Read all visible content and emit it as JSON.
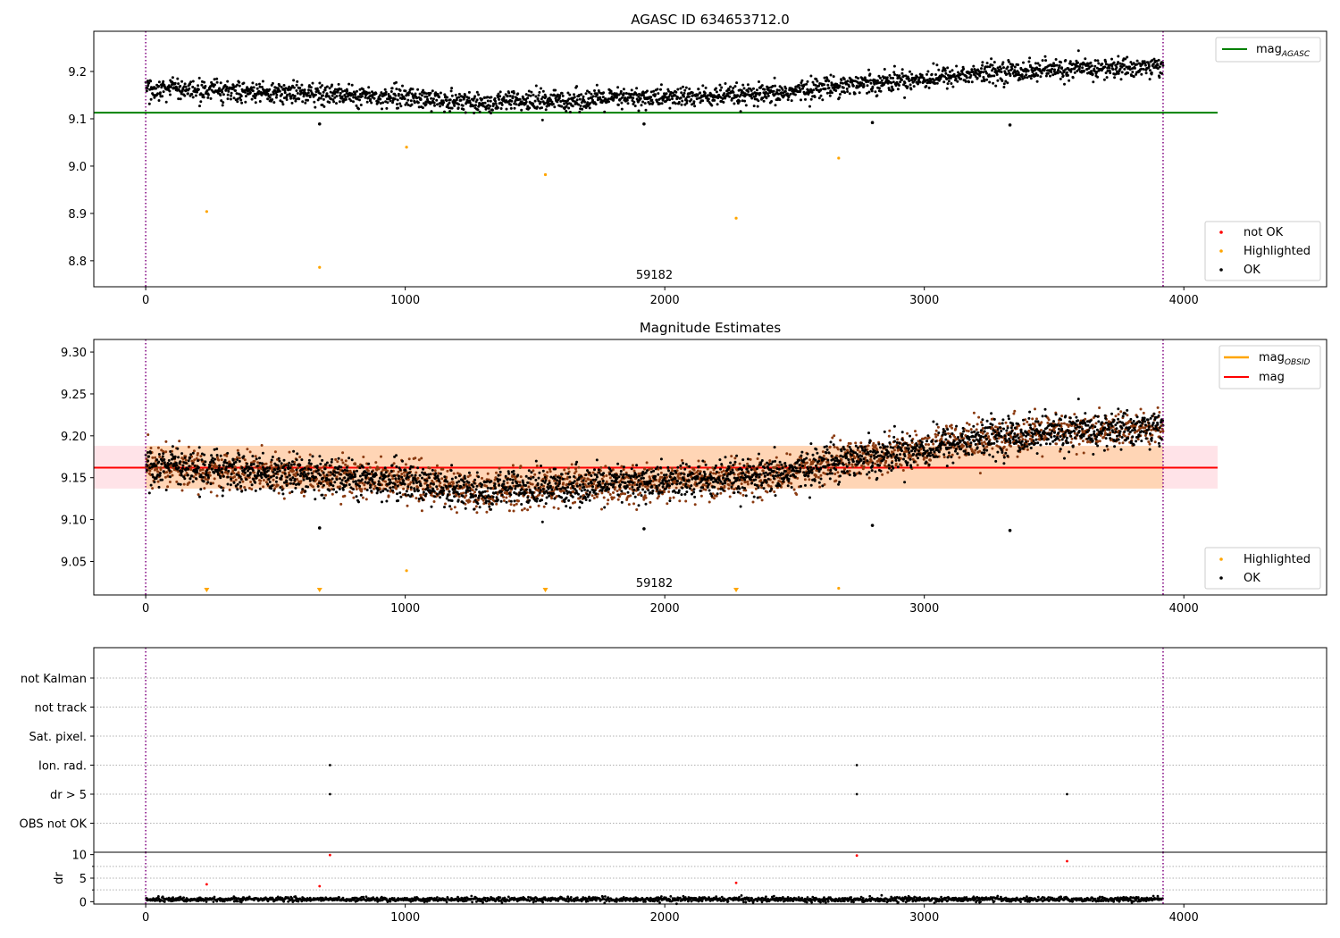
{
  "chart_data": [
    {
      "type": "scatter",
      "title": "AGASC ID 634653712.0",
      "xlim": [
        -200,
        4550
      ],
      "ylim": [
        8.745,
        9.285
      ],
      "x_ticks": [
        0,
        1000,
        2000,
        3000,
        4000
      ],
      "y_ticks": [
        8.8,
        8.9,
        9.0,
        9.1,
        9.2
      ],
      "grid": false,
      "legend_placement": [
        "top-right",
        "bottom-right"
      ],
      "mag_line": {
        "name": "mag_AGASC",
        "value": 9.113,
        "x_range": [
          -200,
          4130
        ],
        "color": "#008000"
      },
      "obsid_boundaries": [
        0,
        3920
      ],
      "obsid_label": {
        "text": "59182",
        "x": 1960
      },
      "ok_trend": [
        [
          0,
          9.163
        ],
        [
          300,
          9.158
        ],
        [
          700,
          9.152
        ],
        [
          1000,
          9.146
        ],
        [
          1300,
          9.133
        ],
        [
          1650,
          9.14
        ],
        [
          2000,
          9.145
        ],
        [
          2400,
          9.15
        ],
        [
          2650,
          9.17
        ],
        [
          3000,
          9.185
        ],
        [
          3300,
          9.2
        ],
        [
          3920,
          9.21
        ]
      ],
      "ok_outliers": [
        [
          670,
          9.089
        ],
        [
          1920,
          9.089
        ],
        [
          2800,
          9.092
        ],
        [
          3330,
          9.087
        ]
      ],
      "highlighted_points": [
        [
          235,
          8.904
        ],
        [
          670,
          8.786
        ],
        [
          1005,
          9.04
        ],
        [
          1540,
          8.982
        ],
        [
          2275,
          8.89
        ],
        [
          2670,
          9.017
        ]
      ],
      "legend_top": [
        {
          "label_main": "mag",
          "label_sub": "AGASC",
          "color": "#008000"
        }
      ],
      "legend_bottom": [
        {
          "label": "not OK",
          "color": "#ff0000"
        },
        {
          "label": "Highlighted",
          "color": "#ffa500"
        },
        {
          "label": "OK",
          "color": "#000000"
        }
      ]
    },
    {
      "type": "scatter",
      "title": "Magnitude Estimates",
      "xlim": [
        -200,
        4550
      ],
      "ylim": [
        9.01,
        9.315
      ],
      "x_ticks": [
        0,
        1000,
        2000,
        3000,
        4000
      ],
      "y_ticks": [
        9.05,
        9.1,
        9.15,
        9.2,
        9.25,
        9.3
      ],
      "grid": false,
      "legend_placement": [
        "top-right",
        "bottom-right"
      ],
      "mean_mag": 9.162,
      "band": [
        9.137,
        9.188
      ],
      "band_x_range": [
        -200,
        4130
      ],
      "obsid_boundaries": [
        0,
        3920
      ],
      "obsid_label": {
        "text": "59182",
        "x": 1960
      },
      "ok_trend": [
        [
          0,
          9.163
        ],
        [
          300,
          9.158
        ],
        [
          700,
          9.152
        ],
        [
          1000,
          9.146
        ],
        [
          1300,
          9.133
        ],
        [
          1650,
          9.14
        ],
        [
          2000,
          9.145
        ],
        [
          2400,
          9.15
        ],
        [
          2650,
          9.17
        ],
        [
          3000,
          9.185
        ],
        [
          3300,
          9.2
        ],
        [
          3920,
          9.21
        ]
      ],
      "ok_outliers": [
        [
          670,
          9.09
        ],
        [
          1920,
          9.089
        ],
        [
          2800,
          9.093
        ],
        [
          3330,
          9.087
        ]
      ],
      "highlighted_points": [
        [
          1005,
          9.039
        ],
        [
          2670,
          9.018
        ]
      ],
      "highlighted_below_axis": [
        235,
        670,
        1540,
        2275
      ],
      "legend_top": [
        {
          "label_main": "mag",
          "label_sub": "OBSID",
          "color": "#ffa500"
        },
        {
          "label_main": "mag",
          "label_sub": "",
          "color": "#ff0000"
        }
      ],
      "legend_bottom": [
        {
          "label": "Highlighted",
          "color": "#ffa500"
        },
        {
          "label": "OK",
          "color": "#000000"
        }
      ]
    },
    {
      "type": "scatter",
      "title": "",
      "xlim": [
        -200,
        4550
      ],
      "categories": [
        "not Kalman",
        "not track",
        "Sat. pixel.",
        "Ion. rad.",
        "dr > 5",
        "OBS not OK"
      ],
      "flag_points": {
        "Ion. rad.": [
          710,
          2740
        ],
        "dr > 5": [
          710,
          2740,
          3550
        ]
      },
      "grid": true,
      "obsid_boundaries": [
        0,
        3920
      ]
    },
    {
      "type": "scatter",
      "title": "",
      "ylabel": "dr",
      "xlim": [
        -200,
        4550
      ],
      "ylim": [
        -0.5,
        10.5
      ],
      "x_ticks": [
        0,
        1000,
        2000,
        3000,
        4000
      ],
      "y_ticks": [
        0,
        5,
        10
      ],
      "grid": true,
      "obsid_boundaries": [
        0,
        3920
      ],
      "baseline": 0.5,
      "red_points": [
        [
          235,
          3.7
        ],
        [
          670,
          3.3
        ],
        [
          710,
          9.9
        ],
        [
          2275,
          4.0
        ],
        [
          2740,
          9.8
        ],
        [
          3550,
          8.6
        ]
      ]
    }
  ]
}
